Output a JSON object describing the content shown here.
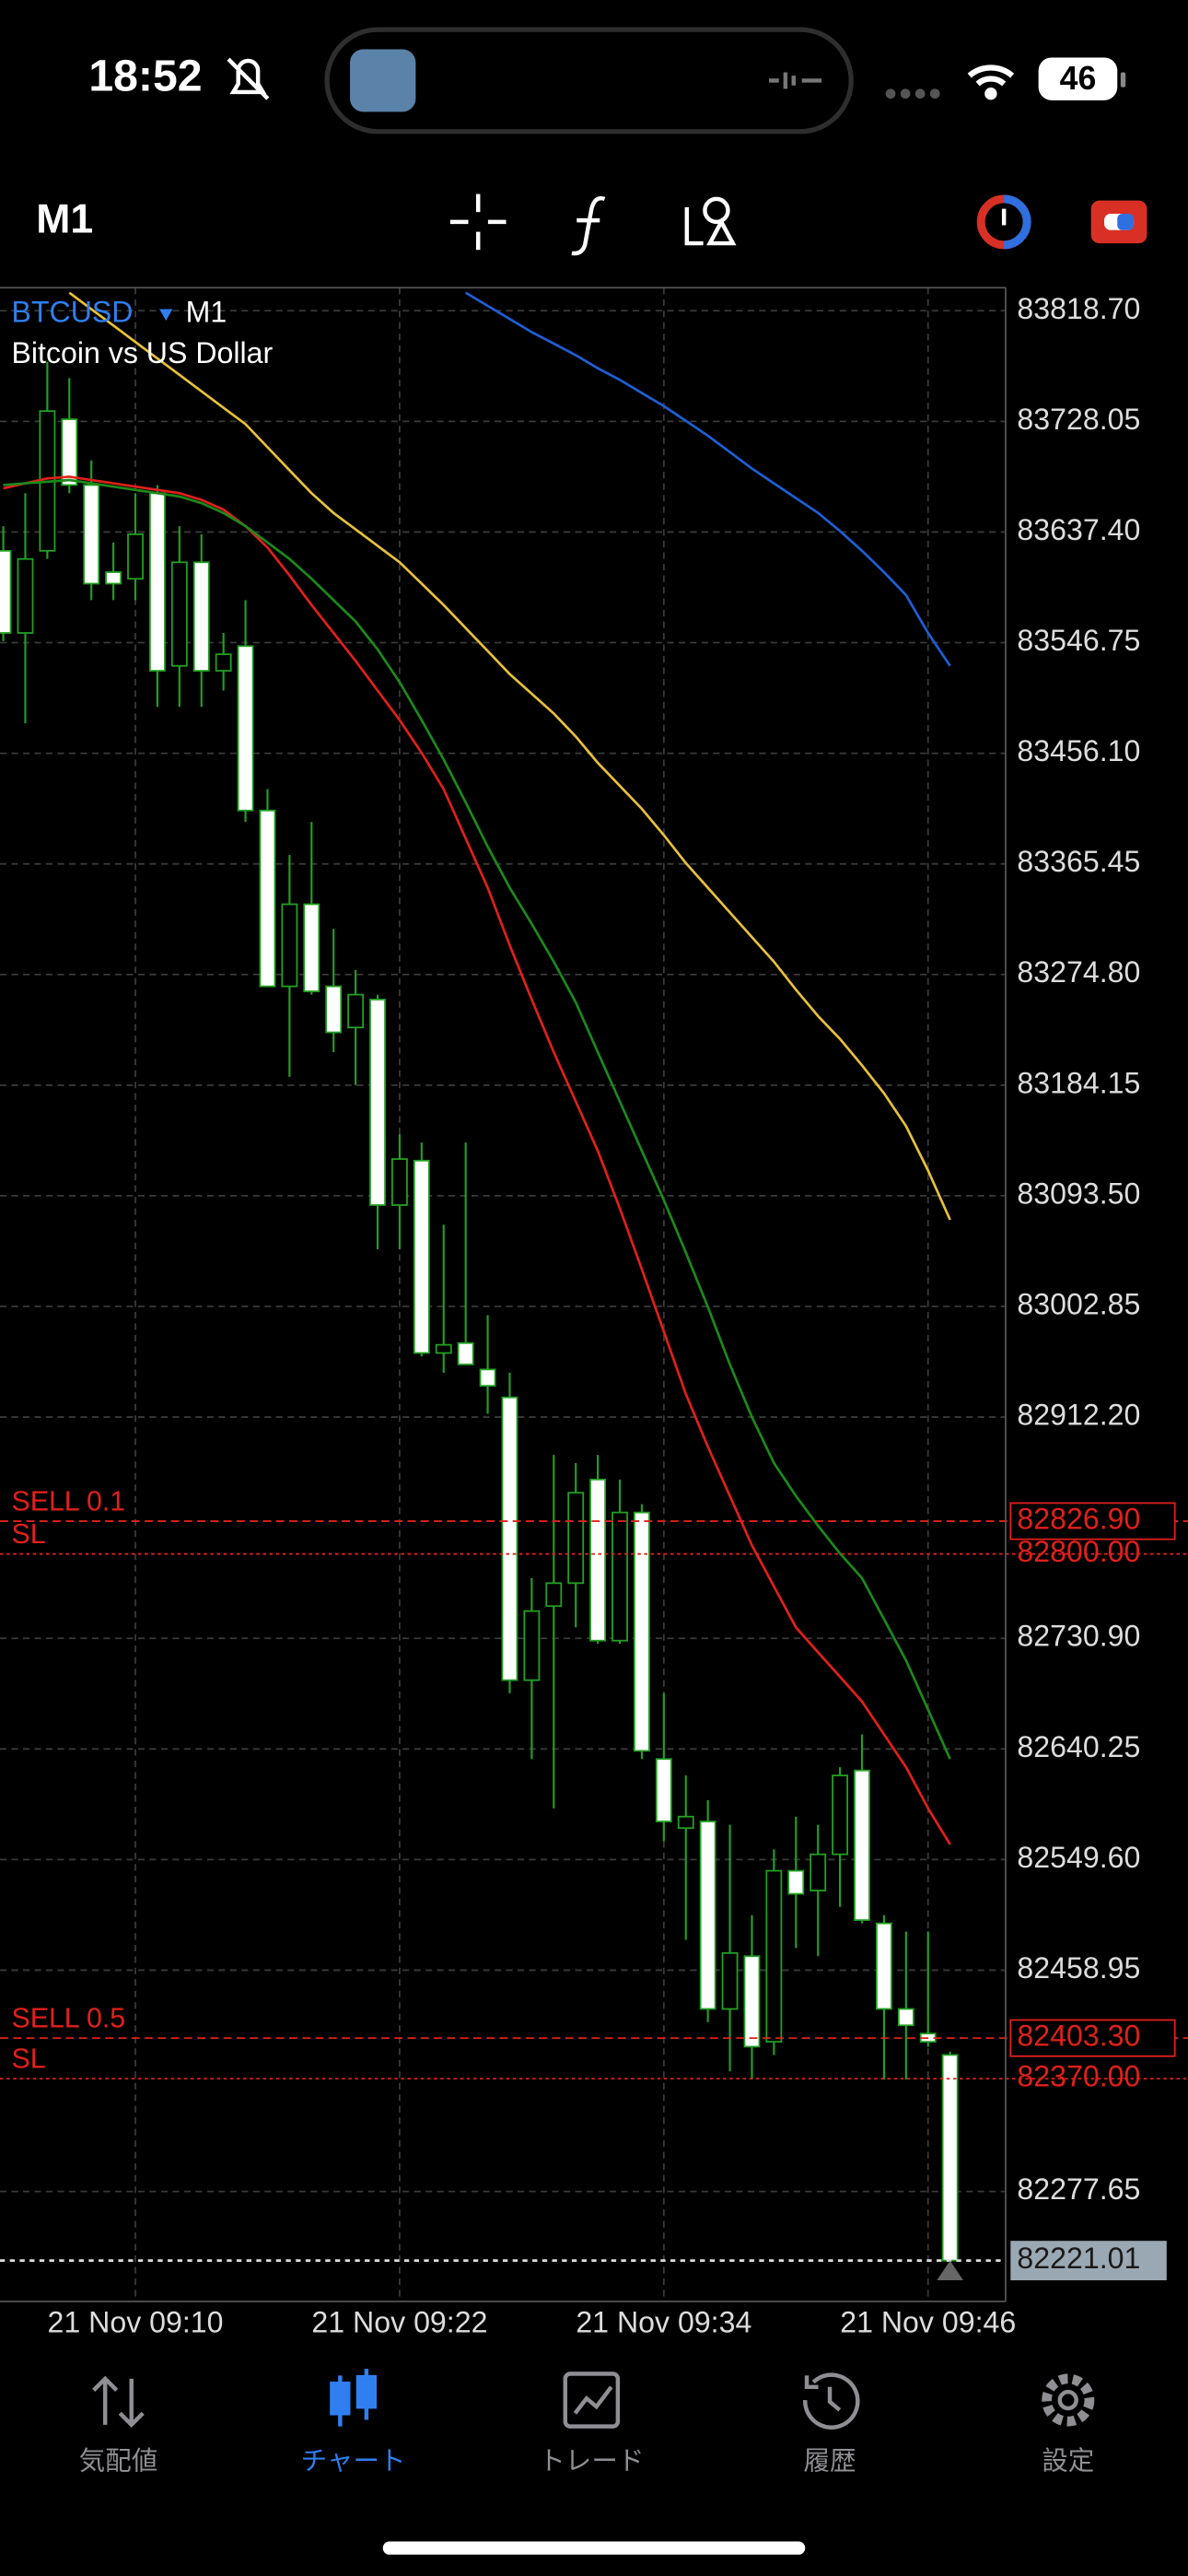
{
  "status_bar": {
    "time": "18:52",
    "battery": 46
  },
  "chart_data": {
    "type": "candlestick",
    "symbol": "BTCUSD",
    "timeframe": "M1",
    "description": "Bitcoin vs US Dollar",
    "categories": [
      null,
      null,
      null,
      null,
      null,
      null,
      "21 Nov 09:10",
      null,
      null,
      null,
      null,
      null,
      null,
      null,
      null,
      null,
      null,
      null,
      "21 Nov 09:22",
      null,
      null,
      null,
      null,
      null,
      null,
      null,
      null,
      null,
      null,
      null,
      "21 Nov 09:34",
      null,
      null,
      null,
      null,
      null,
      null,
      null,
      null,
      null,
      null,
      null,
      "21 Nov 09:46",
      null
    ],
    "open": [
      83622.0,
      83554.7,
      83622.0,
      83729.8,
      83675.9,
      83604.5,
      83599.1,
      83669.2,
      83527.7,
      83612.6,
      83523.7,
      83543.9,
      83409.2,
      83265.1,
      83332.4,
      83265.1,
      83231.4,
      83254.3,
      83085.9,
      83122.3,
      82964.7,
      82972.8,
      82951.2,
      82928.3,
      82696.6,
      82757.3,
      82776.1,
      82861.0,
      82729.0,
      82834.0,
      82632.0,
      82575.4,
      82580.8,
      82427.2,
      82470.4,
      82400.3,
      82540.4,
      82524.2,
      82553.9,
      82622.6,
      82497.3,
      82427.2,
      82407.0,
      82389.5
    ],
    "high": [
      83642.2,
      83669.2,
      83776.9,
      83763.5,
      83696.1,
      83628.8,
      83669.2,
      83675.9,
      83642.2,
      83635.5,
      83554.7,
      83581.6,
      83426.7,
      83372.8,
      83399.8,
      83312.2,
      83278.6,
      83258.3,
      83143.9,
      83137.1,
      83069.8,
      83137.1,
      82995.7,
      82948.5,
      82780.2,
      82881.2,
      82874.5,
      82881.2,
      82861.0,
      82840.8,
      82685.9,
      82618.5,
      82598.3,
      82578.1,
      82504.0,
      82557.9,
      82584.8,
      82578.1,
      82625.3,
      82652.2,
      82504.0,
      82490.6,
      82490.6,
      82392.2
    ],
    "low": [
      83548.0,
      83480.6,
      83615.3,
      83669.2,
      83581.6,
      83581.6,
      83581.6,
      83494.1,
      83494.1,
      83494.1,
      83507.5,
      83399.8,
      83265.1,
      83191.0,
      83258.3,
      83211.2,
      83184.3,
      83049.6,
      83049.6,
      82962.0,
      82948.5,
      82955.3,
      82914.9,
      82685.9,
      82632.0,
      82591.6,
      82739.8,
      82726.3,
      82726.3,
      82632.0,
      82564.6,
      82483.8,
      82416.4,
      82376.1,
      82369.3,
      82389.5,
      82477.1,
      82470.4,
      82510.8,
      82497.3,
      82369.3,
      82369.3,
      82396.3,
      82221.01
    ],
    "close": [
      83554.7,
      83615.3,
      83736.5,
      83675.9,
      83595.1,
      83595.1,
      83635.5,
      83523.7,
      83612.6,
      83523.7,
      83537.2,
      83409.2,
      83265.1,
      83332.4,
      83261.0,
      83227.4,
      83258.3,
      83085.9,
      83123.6,
      82964.7,
      82971.4,
      82955.3,
      82937.8,
      82696.6,
      82753.2,
      82776.1,
      82850.2,
      82729.0,
      82834.0,
      82638.7,
      82580.8,
      82584.8,
      82427.2,
      82473.0,
      82396.3,
      82540.4,
      82521.5,
      82553.9,
      82618.5,
      82500.0,
      82427.2,
      82413.8,
      82400.3,
      82221.01
    ],
    "up_fill": "#000000",
    "down_fill": "#ffffff",
    "wick_color": "#22a022",
    "series": [
      {
        "color": "#1f5fd6",
        "values": [
          null,
          null,
          null,
          null,
          null,
          null,
          null,
          null,
          null,
          null,
          null,
          null,
          null,
          null,
          null,
          null,
          null,
          null,
          null,
          null,
          null,
          83833.5,
          83822.7,
          83812.0,
          83801.2,
          83791.8,
          83782.3,
          83771.6,
          83762.1,
          83751.3,
          83740.6,
          83728.5,
          83716.3,
          83702.9,
          83689.4,
          83677.3,
          83665.2,
          83653.1,
          83638.2,
          83622.0,
          83604.5,
          83585.7,
          83554.7,
          83527.7
        ]
      },
      {
        "color": "#e8c13a",
        "values": [
          null,
          null,
          null,
          83833.5,
          83820.0,
          83806.6,
          83793.1,
          83779.6,
          83766.2,
          83752.7,
          83739.2,
          83725.8,
          83706.9,
          83688.0,
          83669.2,
          83653.0,
          83639.6,
          83626.1,
          83612.6,
          83595.1,
          83577.6,
          83558.7,
          83539.9,
          83521.0,
          83504.9,
          83488.7,
          83469.8,
          83448.3,
          83429.4,
          83410.6,
          83389.0,
          83366.1,
          83345.9,
          83325.7,
          83305.5,
          83285.3,
          83262.4,
          83240.8,
          83222.0,
          83200.4,
          83177.5,
          83150.6,
          83114.2,
          83073.8
        ]
      },
      {
        "color": "#e0201b",
        "values": [
          83673.2,
          83677.3,
          83681.3,
          83682.7,
          83680.0,
          83677.3,
          83674.6,
          83671.9,
          83669.2,
          83663.8,
          83655.7,
          83642.2,
          83624.7,
          83601.8,
          83577.6,
          83554.7,
          83531.8,
          83507.5,
          83483.3,
          83456.4,
          83426.7,
          83386.3,
          83345.9,
          83298.8,
          83254.3,
          83211.2,
          83170.8,
          83130.4,
          83083.2,
          83033.4,
          82982.2,
          82931.0,
          82887.9,
          82847.5,
          82807.1,
          82773.4,
          82739.8,
          82719.5,
          82699.4,
          82679.1,
          82652.2,
          82625.3,
          82591.6,
          82562.0
        ]
      },
      {
        "color": "#1b8a1b",
        "values": [
          83675.9,
          83677.3,
          83678.6,
          83680.0,
          83677.3,
          83674.6,
          83671.9,
          83669.2,
          83666.5,
          83661.1,
          83653.0,
          83642.2,
          83628.8,
          83615.3,
          83599.1,
          83581.6,
          83564.1,
          83541.2,
          83514.3,
          83483.3,
          83451.0,
          83415.9,
          83379.6,
          83345.9,
          83316.3,
          83285.3,
          83252.0,
          83211.2,
          83170.8,
          83130.4,
          83090.0,
          83046.9,
          83002.4,
          82955.3,
          82912.2,
          82874.5,
          82847.5,
          82823.2,
          82800.4,
          82780.2,
          82746.5,
          82712.8,
          82672.4,
          82632.0
        ]
      }
    ],
    "ylim": [
      82187.5,
      83837.6
    ],
    "yticks": [
      {
        "value": 83818.7,
        "label": "83818.70"
      },
      {
        "value": 83728.05,
        "label": "83728.05"
      },
      {
        "value": 83637.4,
        "label": "83637.40"
      },
      {
        "value": 83546.75,
        "label": "83546.75"
      },
      {
        "value": 83456.1,
        "label": "83456.10"
      },
      {
        "value": 83365.45,
        "label": "83365.45"
      },
      {
        "value": 83274.8,
        "label": "83274.80"
      },
      {
        "value": 83184.15,
        "label": "83184.15"
      },
      {
        "value": 83093.5,
        "label": "83093.50"
      },
      {
        "value": 83002.85,
        "label": "83002.85"
      },
      {
        "value": 82912.2,
        "label": "82912.20"
      },
      {
        "value": 82730.9,
        "label": "82730.90"
      },
      {
        "value": 82640.25,
        "label": "82640.25"
      },
      {
        "value": 82549.6,
        "label": "82549.60"
      },
      {
        "value": 82458.95,
        "label": "82458.95"
      },
      {
        "value": 82277.65,
        "label": "82277.65"
      }
    ],
    "grid": true,
    "levels": [
      {
        "name": "SELL 0.1",
        "value": 82826.9,
        "value_label": "82826.90",
        "boxed": true,
        "color": "#e0201b"
      },
      {
        "name": "SL",
        "value": 82800,
        "value_label": "82800.00",
        "boxed": false,
        "color": "#e0201b"
      },
      {
        "name": "SELL 0.5",
        "value": 82403.3,
        "value_label": "82403.30",
        "boxed": true,
        "color": "#e0201b"
      },
      {
        "name": "SL",
        "value": 82370,
        "value_label": "82370.00",
        "boxed": false,
        "color": "#e0201b"
      }
    ],
    "current_price": 82221.01
  },
  "tab_bar": {
    "items": [
      "気配値",
      "チャート",
      "トレード",
      "履歴",
      "設定"
    ],
    "active": 1
  }
}
